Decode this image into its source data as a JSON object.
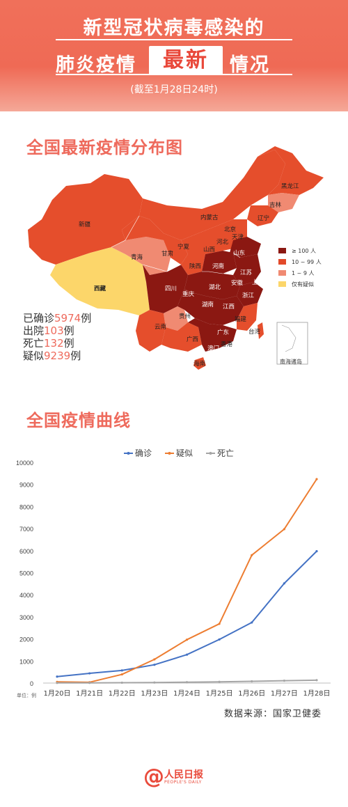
{
  "header": {
    "title_line1": "新型冠状病毒感染的",
    "title_line2_left": "肺炎疫情",
    "title_line2_highlight": "最新",
    "title_line2_right": "情况",
    "subtitle": "(截至1月28日24时)"
  },
  "map_section": {
    "title": "全国最新疫情分布图",
    "stats": [
      {
        "label": "已确诊",
        "value": "5974",
        "unit": "例"
      },
      {
        "label": "出院",
        "value": "103",
        "unit": "例"
      },
      {
        "label": "死亡",
        "value": "132",
        "unit": "例"
      },
      {
        "label": "疑似",
        "value": "9239",
        "unit": "例"
      }
    ],
    "legend": [
      {
        "label": "≥ 100 人",
        "color": "#8b1812"
      },
      {
        "label": "10 ~ 99 人",
        "color": "#e24a2a"
      },
      {
        "label": "1 ~ 9 人",
        "color": "#f08a72"
      },
      {
        "label": "仅有疑似",
        "color": "#fcd66a"
      }
    ],
    "inset_label": "南海诸岛",
    "province_labels": [
      "新疆",
      "西藏",
      "青海",
      "甘肃",
      "宁夏",
      "内蒙古",
      "黑龙江",
      "吉林",
      "辽宁",
      "北京",
      "天津",
      "河北",
      "山西",
      "陕西",
      "山东",
      "河南",
      "江苏",
      "安徽",
      "上海",
      "湖北",
      "四川",
      "重庆",
      "浙江",
      "湖南",
      "江西",
      "贵州",
      "云南",
      "福建",
      "台湾",
      "广西",
      "广东",
      "香港",
      "澳门",
      "海南"
    ]
  },
  "chart_section": {
    "title": "全国疫情曲线",
    "unit_label": "单位：例",
    "source": "数据来源：国家卫健委"
  },
  "chart_data": {
    "type": "line",
    "x": [
      "1月20日",
      "1月21日",
      "1月22日",
      "1月23日",
      "1月24日",
      "1月25日",
      "1月26日",
      "1月27日",
      "1月28日"
    ],
    "ylim": [
      0,
      10000
    ],
    "yticks": [
      0,
      1000,
      2000,
      3000,
      4000,
      5000,
      6000,
      7000,
      8000,
      9000,
      10000
    ],
    "legend_position": "top",
    "grid": false,
    "series": [
      {
        "name": "确诊",
        "color": "#4472c4",
        "values": [
          291,
          440,
          571,
          830,
          1287,
          1975,
          2744,
          4515,
          5974
        ]
      },
      {
        "name": "疑似",
        "color": "#ed7d31",
        "values": [
          54,
          37,
          393,
          1072,
          1965,
          2684,
          5794,
          6973,
          9239
        ]
      },
      {
        "name": "死亡",
        "color": "#a5a5a5",
        "values": [
          6,
          9,
          17,
          25,
          41,
          56,
          80,
          106,
          132
        ]
      }
    ]
  },
  "logo": {
    "at": "@",
    "cn": "人民日报",
    "en": "PEOPLE'S DAILY"
  }
}
